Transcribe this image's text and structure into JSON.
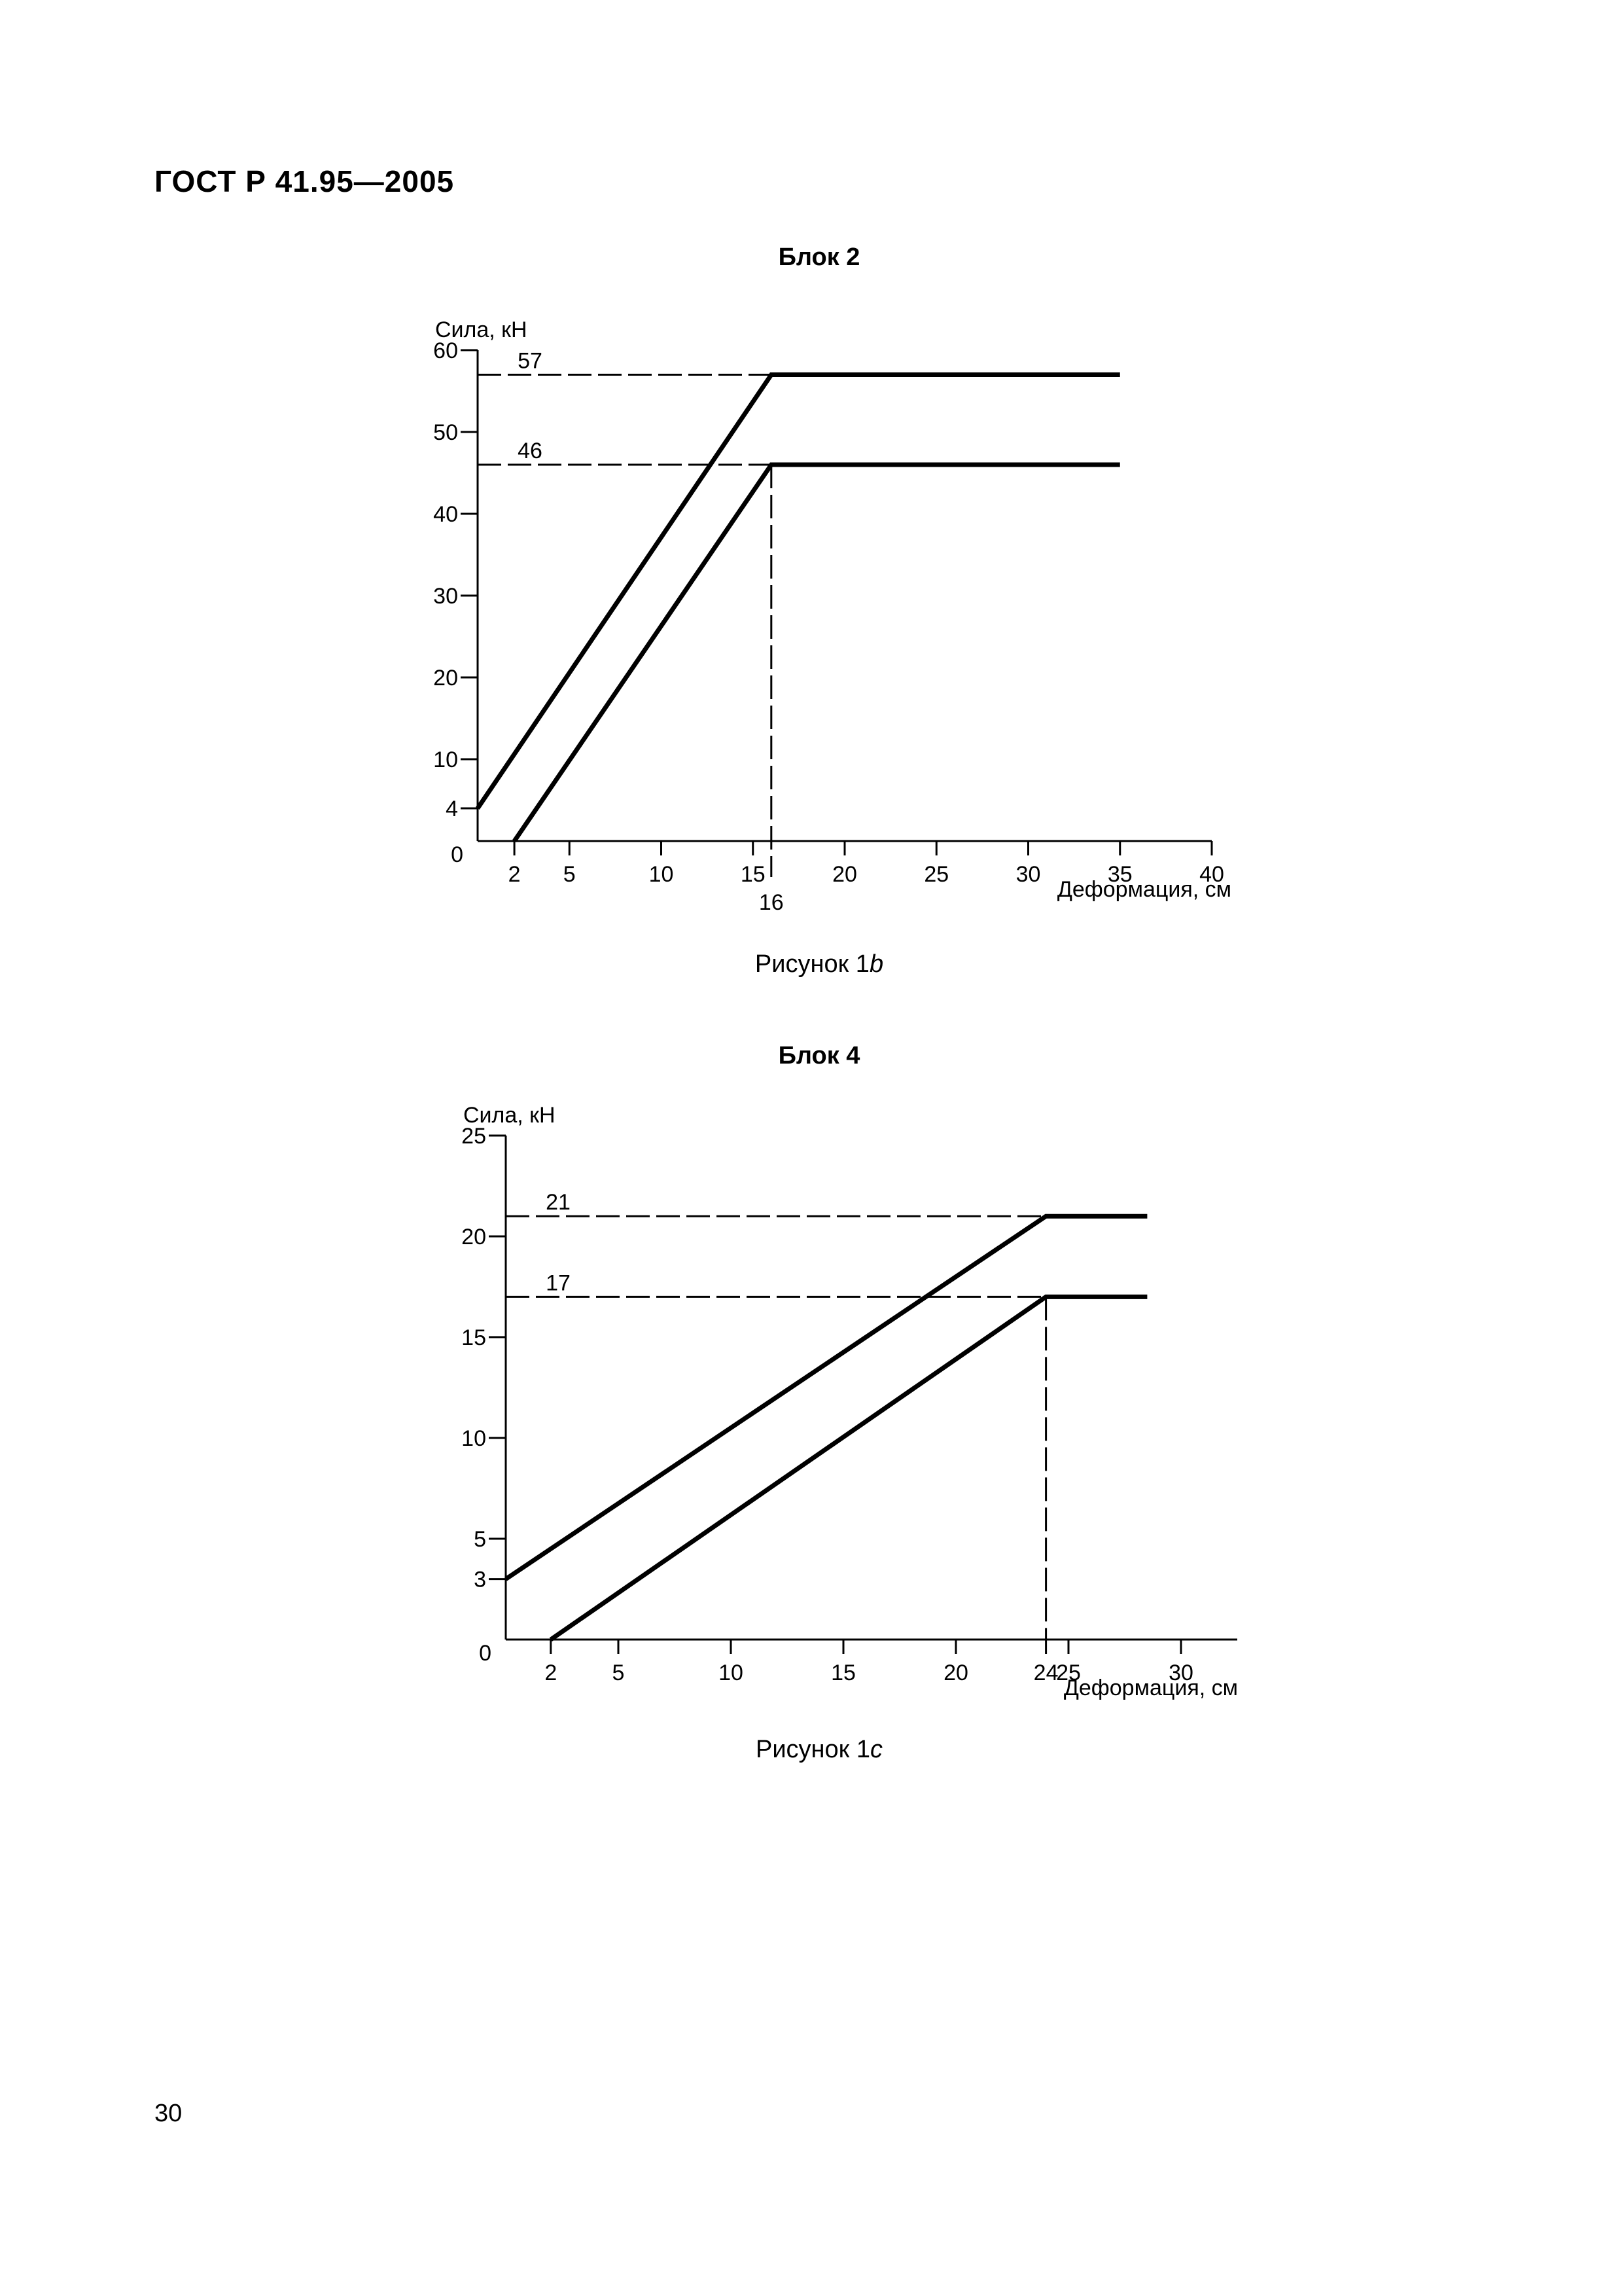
{
  "header": {
    "standard": "ГОСТ Р 41.95—2005"
  },
  "page_number": "30",
  "chart_data": [
    {
      "type": "line",
      "title": "Блок 2",
      "caption_prefix": "Рисунок 1",
      "caption_suffix": "b",
      "ylabel": "Сила, кН",
      "xlabel": "Деформация, см",
      "xlim": [
        0,
        40
      ],
      "ylim": [
        0,
        60
      ],
      "x_ticks": [
        2,
        5,
        10,
        15,
        20,
        25,
        30,
        35,
        40
      ],
      "y_ticks": [
        4,
        10,
        20,
        30,
        40,
        50,
        60
      ],
      "origin_label": "0",
      "extra_x_label": {
        "value": 16,
        "text": "16"
      },
      "grid": false,
      "legend": "none",
      "series": [
        {
          "x": [
            0,
            16,
            35
          ],
          "y": [
            4,
            57,
            57
          ]
        },
        {
          "x": [
            2,
            16,
            35
          ],
          "y": [
            0,
            46,
            46
          ]
        }
      ],
      "reference_lines": [
        {
          "orientation": "horizontal",
          "value": 57,
          "from": 0,
          "to": 16,
          "label": "57"
        },
        {
          "orientation": "horizontal",
          "value": 46,
          "from": 0,
          "to": 16,
          "label": "46"
        },
        {
          "orientation": "vertical",
          "value": 16,
          "from": 0,
          "to": 46
        }
      ]
    },
    {
      "type": "line",
      "title": "Блок 4",
      "caption_prefix": "Рисунок 1",
      "caption_suffix": "c",
      "ylabel": "Сила, кН",
      "xlabel": "Деформация, см",
      "xlim": [
        0,
        32.5
      ],
      "ylim": [
        0,
        25
      ],
      "x_ticks": [
        2,
        5,
        10,
        15,
        20,
        24,
        25,
        30
      ],
      "y_ticks": [
        3,
        5,
        10,
        15,
        20,
        25
      ],
      "origin_label": "0",
      "grid": false,
      "legend": "none",
      "series": [
        {
          "x": [
            0,
            24,
            28.5
          ],
          "y": [
            3,
            21,
            21
          ]
        },
        {
          "x": [
            2,
            24,
            28.5
          ],
          "y": [
            0,
            17,
            17
          ]
        }
      ],
      "reference_lines": [
        {
          "orientation": "horizontal",
          "value": 21,
          "from": 0,
          "to": 24,
          "label": "21"
        },
        {
          "orientation": "horizontal",
          "value": 17,
          "from": 0,
          "to": 24,
          "label": "17"
        },
        {
          "orientation": "vertical",
          "value": 24,
          "from": 0,
          "to": 17
        }
      ]
    }
  ]
}
